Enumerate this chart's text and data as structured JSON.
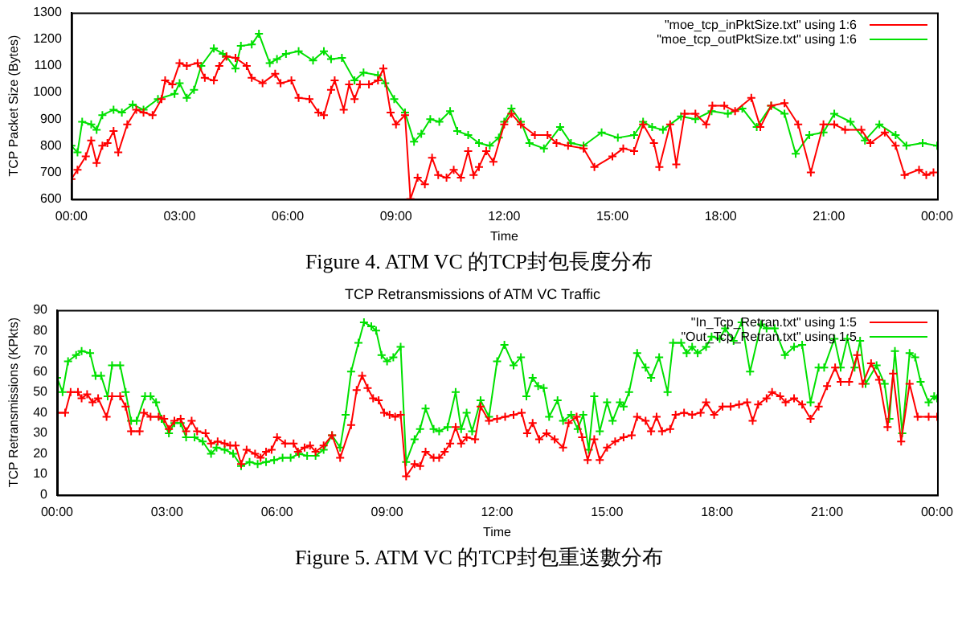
{
  "chart_data": [
    {
      "type": "line",
      "xlabel": "Time",
      "ylabel": "TCP Packet Size (Bytes)",
      "xlim": [
        0,
        24
      ],
      "xticks": [
        {
          "value": 0,
          "label": "00:00"
        },
        {
          "value": 3,
          "label": "03:00"
        },
        {
          "value": 6,
          "label": "06:00"
        },
        {
          "value": 9,
          "label": "09:00"
        },
        {
          "value": 12,
          "label": "12:00"
        },
        {
          "value": 15,
          "label": "15:00"
        },
        {
          "value": 18,
          "label": "18:00"
        },
        {
          "value": 21,
          "label": "21:00"
        },
        {
          "value": 24,
          "label": "00:00"
        }
      ],
      "ylim": [
        600,
        1300
      ],
      "yticks": [
        600,
        700,
        800,
        900,
        1000,
        1100,
        1200,
        1300
      ],
      "legend": "top right",
      "marker": "cross",
      "annotations": [
        "Figure 4. ATM VC 的TCP封包長度分布"
      ],
      "series": [
        {
          "name": "\"moe_tcp_inPktSize.txt\" using 1:6",
          "color": "#ff0000",
          "x": [
            0,
            0.17,
            0.4,
            0.55,
            0.7,
            0.86,
            1.0,
            1.17,
            1.3,
            1.55,
            1.8,
            2.0,
            2.25,
            2.5,
            2.6,
            2.8,
            3.0,
            3.2,
            3.5,
            3.7,
            3.95,
            4.1,
            4.3,
            4.55,
            4.86,
            5.0,
            5.3,
            5.65,
            5.8,
            6.1,
            6.3,
            6.6,
            6.85,
            7.0,
            7.2,
            7.3,
            7.55,
            7.7,
            7.85,
            8.0,
            8.25,
            8.5,
            8.65,
            8.85,
            9.0,
            9.25,
            9.4,
            9.6,
            9.8,
            10.0,
            10.17,
            10.4,
            10.6,
            10.8,
            11.0,
            11.15,
            11.3,
            11.5,
            11.7,
            12.0,
            12.2,
            12.46,
            12.85,
            13.2,
            13.45,
            13.77,
            14.2,
            14.5,
            15.0,
            15.3,
            15.6,
            15.85,
            16.15,
            16.3,
            16.6,
            16.77,
            17.0,
            17.3,
            17.6,
            17.77,
            18.1,
            18.4,
            18.85,
            19.1,
            19.4,
            19.77,
            20.15,
            20.5,
            20.85,
            21.15,
            21.45,
            21.9,
            22.15,
            22.55,
            22.85,
            23.1,
            23.5,
            23.7,
            23.9
          ],
          "values": [
            675,
            710,
            760,
            820,
            735,
            800,
            810,
            855,
            775,
            880,
            935,
            925,
            915,
            975,
            1045,
            1030,
            1110,
            1100,
            1110,
            1055,
            1045,
            1100,
            1135,
            1130,
            1100,
            1055,
            1035,
            1070,
            1035,
            1045,
            980,
            975,
            925,
            915,
            1010,
            1045,
            935,
            1030,
            975,
            1030,
            1030,
            1045,
            1090,
            925,
            880,
            915,
            600,
            680,
            655,
            755,
            690,
            680,
            710,
            680,
            780,
            690,
            720,
            780,
            740,
            880,
            920,
            880,
            840,
            840,
            810,
            800,
            790,
            720,
            760,
            790,
            780,
            880,
            810,
            720,
            880,
            730,
            920,
            920,
            880,
            950,
            950,
            930,
            980,
            870,
            950,
            960,
            880,
            700,
            880,
            880,
            860,
            860,
            810,
            850,
            800,
            690,
            710,
            690,
            700
          ]
        },
        {
          "name": "\"moe_tcp_outPktSize.txt\" using 1:6",
          "color": "#00e000",
          "x": [
            0,
            0.17,
            0.3,
            0.55,
            0.7,
            0.86,
            1.17,
            1.4,
            1.7,
            2.0,
            2.4,
            2.86,
            3.0,
            3.2,
            3.4,
            3.6,
            3.95,
            4.2,
            4.3,
            4.55,
            4.7,
            5.0,
            5.2,
            5.5,
            5.7,
            5.95,
            6.3,
            6.7,
            7.0,
            7.2,
            7.5,
            7.85,
            8.1,
            8.5,
            8.7,
            8.95,
            9.25,
            9.5,
            9.7,
            9.95,
            10.2,
            10.5,
            10.7,
            11.0,
            11.3,
            11.6,
            11.85,
            12.0,
            12.2,
            12.46,
            12.7,
            13.1,
            13.55,
            13.85,
            14.2,
            14.7,
            15.15,
            15.6,
            15.85,
            16.1,
            16.4,
            16.9,
            17.3,
            17.75,
            18.2,
            18.6,
            19.0,
            19.4,
            19.77,
            20.08,
            20.46,
            20.85,
            21.15,
            21.6,
            22.0,
            22.4,
            22.85,
            23.15,
            23.6,
            24.0
          ],
          "values": [
            800,
            775,
            890,
            880,
            860,
            915,
            935,
            925,
            955,
            935,
            975,
            995,
            1035,
            980,
            1010,
            1100,
            1165,
            1145,
            1135,
            1090,
            1175,
            1180,
            1220,
            1110,
            1125,
            1145,
            1155,
            1120,
            1155,
            1125,
            1130,
            1045,
            1075,
            1065,
            1035,
            975,
            925,
            815,
            845,
            900,
            890,
            930,
            855,
            840,
            810,
            800,
            830,
            890,
            940,
            890,
            810,
            790,
            870,
            810,
            800,
            850,
            830,
            840,
            890,
            870,
            860,
            910,
            900,
            930,
            920,
            940,
            870,
            950,
            920,
            770,
            840,
            850,
            920,
            890,
            820,
            880,
            840,
            800,
            810,
            800
          ]
        }
      ]
    },
    {
      "type": "line",
      "title": "TCP Retransmissions of ATM VC Traffic",
      "xlabel": "Time",
      "ylabel": "TCP Retransmissions (KPkts)",
      "xlim": [
        0,
        24
      ],
      "xticks": [
        {
          "value": 0,
          "label": "00:00"
        },
        {
          "value": 3,
          "label": "03:00"
        },
        {
          "value": 6,
          "label": "06:00"
        },
        {
          "value": 9,
          "label": "09:00"
        },
        {
          "value": 12,
          "label": "12:00"
        },
        {
          "value": 15,
          "label": "15:00"
        },
        {
          "value": 18,
          "label": "18:00"
        },
        {
          "value": 21,
          "label": "21:00"
        },
        {
          "value": 24,
          "label": "00:00"
        }
      ],
      "ylim": [
        0,
        90
      ],
      "yticks": [
        0,
        10,
        20,
        30,
        40,
        50,
        60,
        70,
        80,
        90
      ],
      "legend": "top right",
      "marker": "cross",
      "annotations": [
        "Figure 5. ATM VC 的TCP封包重送數分布"
      ],
      "series": [
        {
          "name": "\"In_Tcp_Retran.txt\" using 1:5",
          "color": "#ff0000",
          "x": [
            0,
            0.22,
            0.37,
            0.57,
            0.67,
            0.82,
            0.97,
            1.12,
            1.35,
            1.5,
            1.72,
            1.87,
            2.02,
            2.25,
            2.37,
            2.55,
            2.77,
            2.92,
            3.05,
            3.2,
            3.37,
            3.52,
            3.67,
            3.82,
            4.05,
            4.2,
            4.38,
            4.57,
            4.72,
            4.87,
            5.02,
            5.17,
            5.4,
            5.55,
            5.7,
            5.85,
            6.0,
            6.22,
            6.45,
            6.57,
            6.75,
            6.9,
            7.05,
            7.27,
            7.5,
            7.72,
            8.02,
            8.17,
            8.32,
            8.47,
            8.62,
            8.77,
            8.92,
            9.07,
            9.22,
            9.37,
            9.52,
            9.75,
            9.9,
            10.05,
            10.27,
            10.42,
            10.57,
            10.72,
            10.87,
            11.02,
            11.17,
            11.4,
            11.55,
            11.78,
            12.0,
            12.22,
            12.45,
            12.67,
            12.82,
            12.97,
            13.15,
            13.35,
            13.57,
            13.8,
            13.95,
            14.17,
            14.32,
            14.47,
            14.65,
            14.8,
            15.0,
            15.22,
            15.45,
            15.67,
            15.82,
            16.05,
            16.2,
            16.35,
            16.5,
            16.72,
            16.87,
            17.1,
            17.32,
            17.55,
            17.7,
            17.92,
            18.15,
            18.37,
            18.6,
            18.82,
            18.97,
            19.12,
            19.35,
            19.5,
            19.72,
            19.87,
            20.1,
            20.32,
            20.55,
            20.77,
            21.0,
            21.22,
            21.37,
            21.6,
            21.82,
            21.97,
            22.2,
            22.42,
            22.65,
            22.8,
            23.02,
            23.25,
            23.47,
            23.77,
            24.0
          ],
          "values": [
            40,
            40,
            50,
            50,
            47,
            49,
            45,
            47,
            38,
            48,
            48,
            43,
            31,
            31,
            40,
            38,
            38,
            37,
            32,
            36,
            37,
            31,
            36,
            31,
            30,
            25,
            26,
            25,
            24,
            24,
            15,
            22,
            20,
            18,
            21,
            22,
            28,
            25,
            25,
            21,
            23,
            24,
            21,
            24,
            29,
            18,
            34,
            51,
            58,
            52,
            47,
            46,
            40,
            39,
            38,
            39,
            9,
            15,
            14,
            21,
            18,
            18,
            21,
            25,
            33,
            25,
            28,
            27,
            43,
            36,
            37,
            38,
            39,
            40,
            30,
            35,
            27,
            30,
            27,
            23,
            35,
            38,
            28,
            17,
            27,
            17,
            23,
            26,
            28,
            29,
            38,
            36,
            31,
            38,
            31,
            32,
            39,
            40,
            39,
            40,
            45,
            39,
            43,
            43,
            44,
            45,
            36,
            44,
            47,
            50,
            48,
            45,
            47,
            44,
            37,
            43,
            53,
            62,
            55,
            55,
            68,
            54,
            64,
            56,
            33,
            59,
            26,
            54,
            38,
            38,
            38
          ]
        },
        {
          "name": "\"Out_Tcp_Retran.txt\" using 1:5",
          "color": "#00e000",
          "x": [
            0,
            0.15,
            0.3,
            0.52,
            0.67,
            0.9,
            1.05,
            1.2,
            1.38,
            1.5,
            1.72,
            1.87,
            2.02,
            2.17,
            2.4,
            2.55,
            2.7,
            2.85,
            3.05,
            3.2,
            3.37,
            3.52,
            3.75,
            3.97,
            4.2,
            4.35,
            4.57,
            4.8,
            5.02,
            5.25,
            5.47,
            5.7,
            5.92,
            6.15,
            6.37,
            6.6,
            6.82,
            7.05,
            7.27,
            7.5,
            7.72,
            7.87,
            8.02,
            8.22,
            8.37,
            8.57,
            8.7,
            8.85,
            9.0,
            9.17,
            9.37,
            9.52,
            9.75,
            9.9,
            10.05,
            10.27,
            10.42,
            10.65,
            10.87,
            11.02,
            11.17,
            11.32,
            11.55,
            11.78,
            12.0,
            12.2,
            12.45,
            12.65,
            12.8,
            12.97,
            13.12,
            13.27,
            13.42,
            13.65,
            13.8,
            14.02,
            14.2,
            14.35,
            14.5,
            14.65,
            14.8,
            15.0,
            15.15,
            15.35,
            15.45,
            15.6,
            15.82,
            16.05,
            16.2,
            16.42,
            16.65,
            16.8,
            17.02,
            17.17,
            17.32,
            17.47,
            17.7,
            17.85,
            18.07,
            18.22,
            18.45,
            18.67,
            18.9,
            19.2,
            19.35,
            19.57,
            19.85,
            20.1,
            20.32,
            20.55,
            20.77,
            20.92,
            21.2,
            21.37,
            21.55,
            21.75,
            21.9,
            22.05,
            22.35,
            22.57,
            22.7,
            22.85,
            23.05,
            23.25,
            23.4,
            23.55,
            23.77,
            23.92,
            24.0
          ],
          "values": [
            57,
            50,
            65,
            68,
            70,
            69,
            58,
            58,
            48,
            63,
            63,
            50,
            36,
            36,
            48,
            48,
            45,
            37,
            30,
            35,
            35,
            28,
            28,
            26,
            20,
            23,
            22,
            20,
            14,
            16,
            15,
            16,
            17,
            18,
            18,
            20,
            19,
            19,
            22,
            29,
            23,
            39,
            60,
            74,
            84,
            82,
            80,
            68,
            65,
            67,
            72,
            16,
            27,
            32,
            42,
            32,
            31,
            33,
            50,
            32,
            40,
            31,
            46,
            38,
            65,
            73,
            63,
            67,
            48,
            57,
            53,
            52,
            38,
            46,
            36,
            39,
            32,
            39,
            22,
            48,
            31,
            45,
            36,
            45,
            43,
            50,
            69,
            62,
            57,
            67,
            50,
            74,
            74,
            69,
            72,
            69,
            72,
            77,
            76,
            81,
            75,
            84,
            60,
            83,
            81,
            81,
            68,
            72,
            73,
            45,
            62,
            62,
            76,
            62,
            76,
            62,
            75,
            54,
            63,
            54,
            37,
            70,
            30,
            69,
            67,
            55,
            45,
            48,
            47
          ]
        }
      ]
    }
  ]
}
